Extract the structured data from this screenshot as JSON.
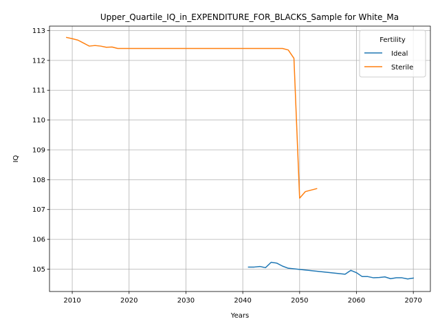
{
  "chart_data": {
    "type": "line",
    "title": "Upper_Quartile_IQ_in_EXPENDITURE_FOR_BLACKS_Sample for White_Ma",
    "xlabel": "Years",
    "ylabel": "IQ",
    "xlim": [
      2006,
      2073
    ],
    "ylim": [
      104.25,
      113.15
    ],
    "xticks": [
      2010,
      2020,
      2030,
      2040,
      2050,
      2060,
      2070
    ],
    "yticks": [
      105,
      106,
      107,
      108,
      109,
      110,
      111,
      112,
      113
    ],
    "grid": true,
    "legend": {
      "title": "Fertility",
      "placement": "top-right",
      "entries": [
        "Ideal",
        "Sterile"
      ]
    },
    "series": [
      {
        "name": "Ideal",
        "color": "#1f77b4",
        "points": [
          [
            2041,
            105.07
          ],
          [
            2042,
            105.07
          ],
          [
            2043,
            105.09
          ],
          [
            2044,
            105.05
          ],
          [
            2045,
            105.23
          ],
          [
            2046,
            105.2
          ],
          [
            2047,
            105.1
          ],
          [
            2048,
            105.03
          ],
          [
            2050,
            104.99
          ],
          [
            2058,
            104.83
          ],
          [
            2059,
            104.96
          ],
          [
            2060,
            104.88
          ],
          [
            2061,
            104.75
          ],
          [
            2062,
            104.75
          ],
          [
            2063,
            104.71
          ],
          [
            2064,
            104.72
          ],
          [
            2065,
            104.74
          ],
          [
            2066,
            104.68
          ],
          [
            2067,
            104.71
          ],
          [
            2068,
            104.71
          ],
          [
            2069,
            104.67
          ],
          [
            2070,
            104.7
          ]
        ]
      },
      {
        "name": "Sterile",
        "color": "#ff7f0e",
        "points": [
          [
            2009,
            112.77
          ],
          [
            2010,
            112.73
          ],
          [
            2011,
            112.68
          ],
          [
            2012,
            112.58
          ],
          [
            2013,
            112.48
          ],
          [
            2014,
            112.5
          ],
          [
            2015,
            112.48
          ],
          [
            2016,
            112.44
          ],
          [
            2017,
            112.45
          ],
          [
            2018,
            112.4
          ],
          [
            2019,
            112.4
          ],
          [
            2020,
            112.4
          ],
          [
            2030,
            112.4
          ],
          [
            2040,
            112.4
          ],
          [
            2045,
            112.4
          ],
          [
            2047,
            112.4
          ],
          [
            2048,
            112.35
          ],
          [
            2049,
            112.07
          ],
          [
            2050,
            107.38
          ],
          [
            2051,
            107.6
          ],
          [
            2053,
            107.7
          ]
        ]
      }
    ]
  }
}
